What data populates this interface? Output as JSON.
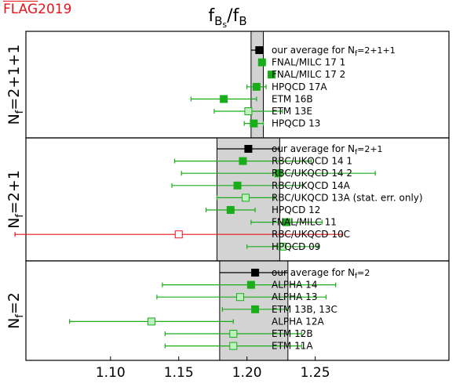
{
  "logo": {
    "flag": "FLAG",
    "year": "2019",
    "color": "#e8141c"
  },
  "chart_data": {
    "type": "scatter",
    "title": "f_{B_s}/f_B",
    "title_main": "f",
    "title_sub_outer": "B",
    "title_sub_inner": "s",
    "title_slash": "/f",
    "title_denom_sub": "B",
    "xlabel": "",
    "xlim": [
      1.038,
      1.348
    ],
    "xticks": [
      1.1,
      1.15,
      1.2,
      1.25
    ],
    "xtick_labels": [
      "1.10",
      "1.15",
      "1.20",
      "1.25"
    ],
    "colors": {
      "green": "#1aad1a",
      "green_light": "#bff0bf",
      "red": "#e8141c",
      "black": "#000000",
      "band": "#d3d3d3"
    },
    "panels": [
      {
        "label_main": "N",
        "label_sub": "f",
        "label_rest": "=2+1+1",
        "band": {
          "lo": 1.203,
          "hi": 1.212,
          "center": 1.2075
        },
        "entries": [
          {
            "label": "our average for N",
            "label_sub": "f",
            "label_tail": "=2+1+1",
            "value": 1.209,
            "err_lo": 0.004,
            "err_hi": 0.004,
            "style": "average"
          },
          {
            "label": "FNAL/MILC 17 1",
            "value": 1.211,
            "err_lo": 0.0,
            "err_hi": 0.0,
            "style": "filled"
          },
          {
            "label": "FNAL/MILC 17 2",
            "value": 1.218,
            "err_lo": 0.002,
            "err_hi": 0.002,
            "style": "filled"
          },
          {
            "label": "HPQCD 17A",
            "value": 1.207,
            "err_lo": 0.007,
            "err_hi": 0.007,
            "style": "filled"
          },
          {
            "label": "ETM 16B",
            "value": 1.183,
            "err_lo": 0.024,
            "err_hi": 0.024,
            "style": "filled"
          },
          {
            "label": "ETM 13E",
            "value": 1.201,
            "err_lo": 0.025,
            "err_hi": 0.025,
            "style": "open"
          },
          {
            "label": "HPQCD 13",
            "value": 1.205,
            "err_lo": 0.007,
            "err_hi": 0.007,
            "style": "filled"
          }
        ]
      },
      {
        "label_main": "N",
        "label_sub": "f",
        "label_rest": "=2+1",
        "band": {
          "lo": 1.178,
          "hi": 1.224,
          "center": 1.201
        },
        "entries": [
          {
            "label": "our average for N",
            "label_sub": "f",
            "label_tail": "=2+1",
            "value": 1.201,
            "err_lo": 0.024,
            "err_hi": 0.024,
            "style": "average"
          },
          {
            "label": "RBC/UKQCD 14 1",
            "value": 1.197,
            "err_lo": 0.05,
            "err_hi": 0.05,
            "style": "filled"
          },
          {
            "label": "RBC/UKQCD 14 2",
            "value": 1.223,
            "err_lo": 0.071,
            "err_hi": 0.071,
            "style": "filled"
          },
          {
            "label": "RBC/UKQCD 14A",
            "value": 1.193,
            "err_lo": 0.048,
            "err_hi": 0.048,
            "style": "filled"
          },
          {
            "label": "RBC/UKQCD 13A (stat. err. only)",
            "value": 1.199,
            "err_lo": 0.021,
            "err_hi": 0.021,
            "style": "open"
          },
          {
            "label": "HPQCD 12",
            "value": 1.188,
            "err_lo": 0.018,
            "err_hi": 0.018,
            "style": "filled"
          },
          {
            "label": "FNAL/MILC 11",
            "value": 1.229,
            "err_lo": 0.026,
            "err_hi": 0.026,
            "style": "filled"
          },
          {
            "label": "RBC/UKQCD 10C",
            "value": 1.15,
            "err_lo": 0.12,
            "err_hi": 0.12,
            "style": "open_red"
          },
          {
            "label": "HPQCD 09",
            "value": 1.226,
            "err_lo": 0.026,
            "err_hi": 0.026,
            "style": "open"
          }
        ]
      },
      {
        "label_main": "N",
        "label_sub": "f",
        "label_rest": "=2",
        "band": {
          "lo": 1.18,
          "hi": 1.23,
          "center": 1.205
        },
        "entries": [
          {
            "label": "our average for N",
            "label_sub": "f",
            "label_tail": "=2",
            "value": 1.206,
            "err_lo": 0.023,
            "err_hi": 0.023,
            "style": "average"
          },
          {
            "label": "ALPHA 14",
            "value": 1.203,
            "err_lo": 0.065,
            "err_hi": 0.062,
            "style": "filled"
          },
          {
            "label": "ALPHA 13",
            "value": 1.195,
            "err_lo": 0.061,
            "err_hi": 0.063,
            "style": "open"
          },
          {
            "label": "ETM 13B, 13C",
            "value": 1.206,
            "err_lo": 0.024,
            "err_hi": 0.024,
            "style": "filled"
          },
          {
            "label": "ALPHA 12A",
            "value": 1.13,
            "err_lo": 0.06,
            "err_hi": 0.06,
            "style": "open"
          },
          {
            "label": "ETM 12B",
            "value": 1.19,
            "err_lo": 0.05,
            "err_hi": 0.05,
            "style": "open"
          },
          {
            "label": "ETM 11A",
            "value": 1.19,
            "err_lo": 0.05,
            "err_hi": 0.05,
            "style": "open"
          }
        ]
      }
    ]
  }
}
